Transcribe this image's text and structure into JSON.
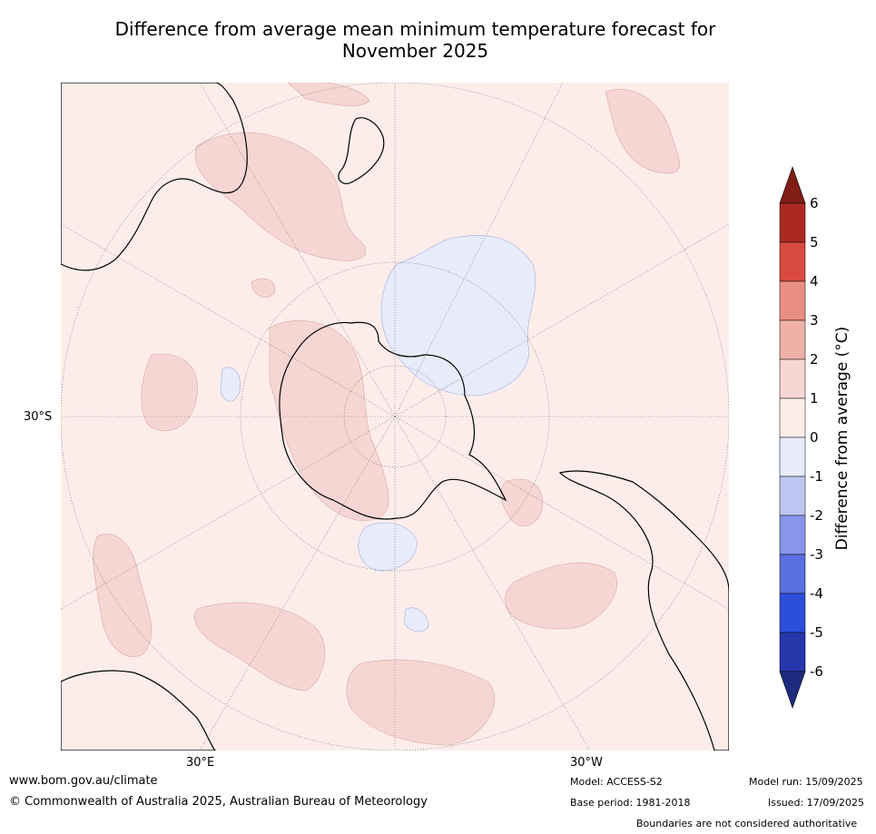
{
  "title_line1": "Difference from average mean minimum temperature forecast for",
  "title_line2": "November 2025",
  "axis": {
    "lat_label": "30°S",
    "lon_label_left": "30°E",
    "lon_label_right": "30°W"
  },
  "colorbar": {
    "label": "Difference from average (°C)",
    "ticks": [
      "6",
      "5",
      "4",
      "3",
      "2",
      "1",
      "0",
      "-1",
      "-2",
      "-3",
      "-4",
      "-5",
      "-6"
    ],
    "colors_top_to_bottom": [
      "#7f1d16",
      "#ab2922",
      "#da4b3f",
      "#e98e83",
      "#efb1a7",
      "#f6d6d3",
      "#fcedeb",
      "#e8ebfa",
      "#c0c6f2",
      "#8795ea",
      "#5a6fe0",
      "#2d4edb",
      "#2636ab",
      "#1c2a80"
    ],
    "min_triangle_color": "#1c2a80",
    "max_triangle_color": "#7f1d16"
  },
  "map": {
    "background_color": "#fcedeb",
    "warm_anomaly_color": "#f6d6d3",
    "cool_anomaly_color": "#e8ebfa"
  },
  "footer": {
    "website": "www.bom.gov.au/climate",
    "copyright": "© Commonwealth of Australia 2025, Australian Bureau of Meteorology",
    "model": "Model: ACCESS-S2",
    "base_period": "Base period: 1981-2018",
    "model_run": "Model run: 15/09/2025",
    "issued": "Issued: 17/09/2025",
    "disclaimer": "Boundaries are not considered authoritative"
  }
}
